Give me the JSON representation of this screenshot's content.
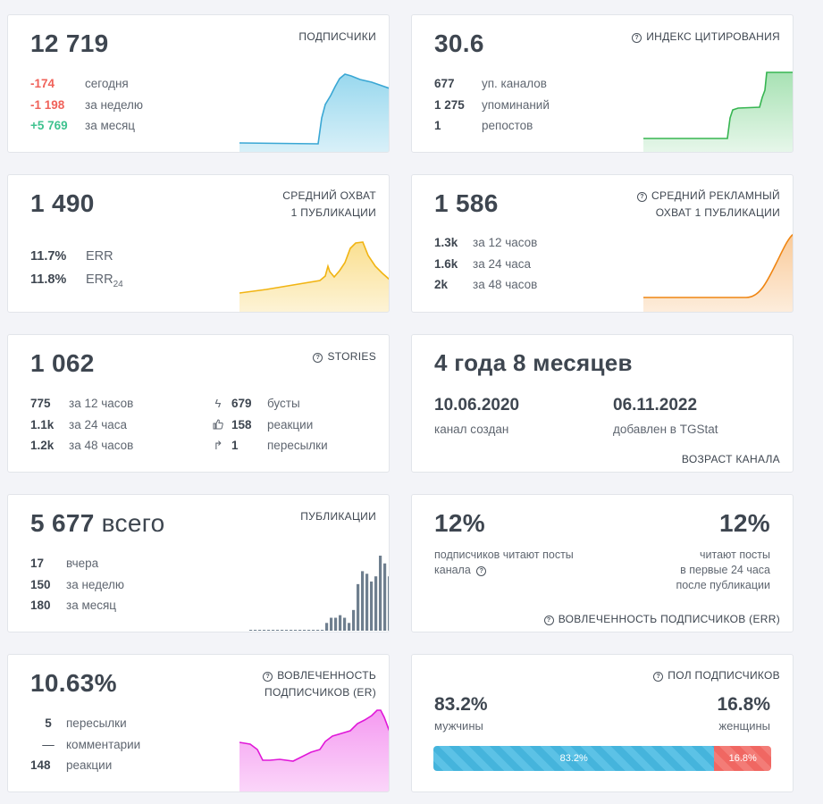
{
  "subscribers": {
    "value": "12 719",
    "label": "ПОДПИСЧИКИ",
    "rows": [
      {
        "value": "-174",
        "text": "сегодня"
      },
      {
        "value": "-1 198",
        "text": "за неделю"
      },
      {
        "value": "+5 769",
        "text": "за месяц"
      }
    ],
    "chart_color": "#45b8e0"
  },
  "citation": {
    "value": "30.6",
    "label": "ИНДЕКС ЦИТИРОВАНИЯ",
    "rows": [
      {
        "value": "677",
        "text": "уп. каналов"
      },
      {
        "value": "1 275",
        "text": "упоминаний"
      },
      {
        "value": "1",
        "text": "репостов"
      }
    ],
    "chart_color": "#3cbe57"
  },
  "reach": {
    "value": "1 490",
    "label_line1": "СРЕДНИЙ ОХВАТ",
    "label_line2": "1 ПУБЛИКАЦИИ",
    "err_value": "11.7%",
    "err_label": "ERR",
    "err24_value": "11.8%",
    "err24_label": "ERR",
    "err24_sub": "24",
    "chart_color": "#f5c022"
  },
  "ad_reach": {
    "value": "1 586",
    "label_line1": "СРЕДНИЙ РЕКЛАМНЫЙ",
    "label_line2": "ОХВАТ 1 ПУБЛИКАЦИИ",
    "rows": [
      {
        "value": "1.3k",
        "text": "за 12 часов"
      },
      {
        "value": "1.6k",
        "text": "за 24 часа"
      },
      {
        "value": "2k",
        "text": "за 48 часов"
      }
    ],
    "chart_color": "#f28a1d"
  },
  "stories": {
    "value": "1 062",
    "label": "STORIES",
    "rows_left": [
      {
        "value": "775",
        "text": "за 12 часов"
      },
      {
        "value": "1.1k",
        "text": "за 24 часа"
      },
      {
        "value": "1.2k",
        "text": "за 48 часов"
      }
    ],
    "rows_right": [
      {
        "icon": "bolt-icon",
        "value": "679",
        "text": "бусты"
      },
      {
        "icon": "thumbs-up-icon",
        "value": "158",
        "text": "реакции"
      },
      {
        "icon": "forward-arrow-icon",
        "value": "1",
        "text": "пересылки"
      }
    ]
  },
  "age": {
    "value": "4 года 8 месяцев",
    "created_date": "10.06.2020",
    "created_label": "канал создан",
    "added_date": "06.11.2022",
    "added_label": "добавлен в TGStat",
    "label": "ВОЗРАСТ КАНАЛА"
  },
  "publications": {
    "value": "5 677",
    "unit": "всего",
    "label": "ПУБЛИКАЦИИ",
    "rows": [
      {
        "value": "17",
        "text": "вчера"
      },
      {
        "value": "150",
        "text": "за неделю"
      },
      {
        "value": "180",
        "text": "за месяц"
      }
    ],
    "bars": [
      0,
      0,
      0,
      0,
      0,
      0,
      0,
      0,
      0,
      0,
      0,
      0,
      0,
      0,
      0,
      0,
      0,
      3,
      5,
      5,
      6,
      5,
      3,
      8,
      18,
      23,
      22,
      19,
      21,
      29,
      26,
      21
    ],
    "bar_color": "#6f7f8f"
  },
  "err_engagement": {
    "left_value": "12%",
    "left_text_line1": "подписчиков читают посты",
    "left_text_line2": "канала",
    "right_value": "12%",
    "right_text_line1": "читают посты",
    "right_text_line2": "в первые 24 часа",
    "right_text_line3": "после публикации",
    "label": "ВОВЛЕЧЕННОСТЬ ПОДПИСЧИКОВ (ERR)"
  },
  "er_engagement": {
    "value": "10.63%",
    "label_line1": "ВОВЛЕЧЕННОСТЬ",
    "label_line2": "ПОДПИСЧИКОВ (ER)",
    "rows": [
      {
        "value": "5",
        "text": "пересылки"
      },
      {
        "value": "—",
        "text": "комментарии"
      },
      {
        "value": "148",
        "text": "реакции"
      }
    ],
    "chart_color": "#e81fe0"
  },
  "gender": {
    "label": "ПОЛ ПОДПИСЧИКОВ",
    "male_value": "83.2%",
    "male_label": "мужчины",
    "female_value": "16.8%",
    "female_label": "женщины",
    "male_pct": 83.2,
    "female_pct": 16.8,
    "male_bar_text": "83.2%",
    "female_bar_text": "16.8%"
  }
}
